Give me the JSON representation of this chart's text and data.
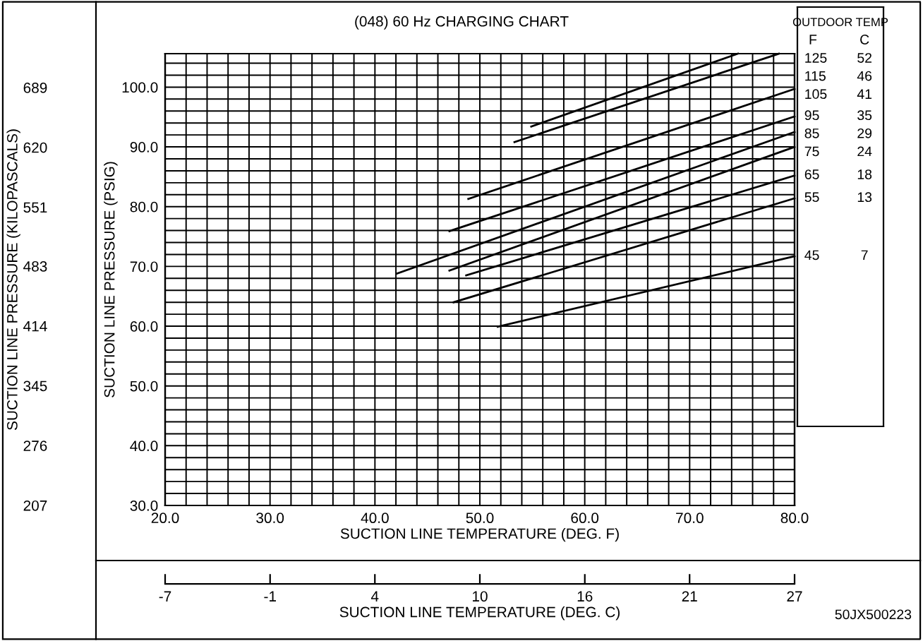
{
  "chart_data": {
    "type": "line",
    "title": "(048) 60 Hz CHARGING CHART",
    "xlabel": "SUCTION LINE TEMPERATURE (DEG. F)",
    "ylabel": "SUCTION LINE PRESSURE (PSIG)",
    "y2label": "SUCTION LINE PRESSURE (KILOPASCALS)",
    "x2label": "SUCTION LINE TEMPERATURE (DEG. C)",
    "legend_title": "OUTDOOR TEMP",
    "legend": "right",
    "grid": true,
    "marker": "none",
    "line_style": "solid",
    "xlim": [
      20,
      80
    ],
    "ylim": [
      30,
      105.6
    ],
    "y2lim": [
      206.9,
      728.1
    ],
    "x2lim": [
      -6.67,
      26.67
    ],
    "xticks": [
      {
        "value": 20,
        "label": "20.0"
      },
      {
        "value": 22,
        "label": null
      },
      {
        "value": 24,
        "label": null
      },
      {
        "value": 26,
        "label": null
      },
      {
        "value": 28,
        "label": null
      },
      {
        "value": 30,
        "label": "30.0"
      },
      {
        "value": 32,
        "label": null
      },
      {
        "value": 34,
        "label": null
      },
      {
        "value": 36,
        "label": null
      },
      {
        "value": 38,
        "label": null
      },
      {
        "value": 40,
        "label": "40.0"
      },
      {
        "value": 42,
        "label": null
      },
      {
        "value": 44,
        "label": null
      },
      {
        "value": 46,
        "label": null
      },
      {
        "value": 48,
        "label": null
      },
      {
        "value": 50,
        "label": "50.0"
      },
      {
        "value": 52,
        "label": null
      },
      {
        "value": 54,
        "label": null
      },
      {
        "value": 56,
        "label": null
      },
      {
        "value": 58,
        "label": null
      },
      {
        "value": 60,
        "label": "60.0"
      },
      {
        "value": 62,
        "label": null
      },
      {
        "value": 64,
        "label": null
      },
      {
        "value": 66,
        "label": null
      },
      {
        "value": 68,
        "label": null
      },
      {
        "value": 70,
        "label": "70.0"
      },
      {
        "value": 72,
        "label": null
      },
      {
        "value": 74,
        "label": null
      },
      {
        "value": 76,
        "label": null
      },
      {
        "value": 78,
        "label": null
      },
      {
        "value": 80,
        "label": "80.0"
      }
    ],
    "yticks": [
      {
        "value": 30,
        "label": "30.0"
      },
      {
        "value": 32,
        "label": null
      },
      {
        "value": 34,
        "label": null
      },
      {
        "value": 36,
        "label": null
      },
      {
        "value": 38,
        "label": null
      },
      {
        "value": 40,
        "label": "40.0"
      },
      {
        "value": 42,
        "label": null
      },
      {
        "value": 44,
        "label": null
      },
      {
        "value": 46,
        "label": null
      },
      {
        "value": 48,
        "label": null
      },
      {
        "value": 50,
        "label": "50.0"
      },
      {
        "value": 52,
        "label": null
      },
      {
        "value": 54,
        "label": null
      },
      {
        "value": 56,
        "label": null
      },
      {
        "value": 58,
        "label": null
      },
      {
        "value": 60,
        "label": "60.0"
      },
      {
        "value": 62,
        "label": null
      },
      {
        "value": 64,
        "label": null
      },
      {
        "value": 66,
        "label": null
      },
      {
        "value": 68,
        "label": null
      },
      {
        "value": 70,
        "label": "70.0"
      },
      {
        "value": 72,
        "label": null
      },
      {
        "value": 74,
        "label": null
      },
      {
        "value": 76,
        "label": null
      },
      {
        "value": 78,
        "label": null
      },
      {
        "value": 80,
        "label": "80.0"
      },
      {
        "value": 82,
        "label": null
      },
      {
        "value": 84,
        "label": null
      },
      {
        "value": 86,
        "label": null
      },
      {
        "value": 88,
        "label": null
      },
      {
        "value": 90,
        "label": "90.0"
      },
      {
        "value": 92,
        "label": null
      },
      {
        "value": 94,
        "label": null
      },
      {
        "value": 96,
        "label": null
      },
      {
        "value": 98,
        "label": null
      },
      {
        "value": 100,
        "label": "100.0"
      },
      {
        "value": 102,
        "label": null
      },
      {
        "value": 104,
        "label": null
      }
    ],
    "y2ticks": [
      207,
      276,
      345,
      414,
      483,
      551,
      620,
      689
    ],
    "x2ticks": [
      {
        "value": -6.67,
        "label": "-7"
      },
      {
        "value": -1.11,
        "label": "-1"
      },
      {
        "value": 4.44,
        "label": "4"
      },
      {
        "value": 10,
        "label": "10"
      },
      {
        "value": 15.56,
        "label": "16"
      },
      {
        "value": 21.11,
        "label": "21"
      },
      {
        "value": 26.67,
        "label": "27"
      }
    ],
    "series": [
      {
        "name": "125",
        "color": "#000000",
        "x": [
          54.9,
          74.6
        ],
        "values": [
          93.4,
          105.6
        ]
      },
      {
        "name": "115",
        "color": "#000000",
        "x": [
          53.3,
          78.5
        ],
        "values": [
          90.8,
          105.6
        ]
      },
      {
        "name": "105",
        "color": "#000000",
        "x": [
          48.9,
          80
        ],
        "values": [
          81.3,
          99.7
        ]
      },
      {
        "name": "95",
        "color": "#000000",
        "x": [
          47.1,
          80
        ],
        "values": [
          75.9,
          95.1
        ]
      },
      {
        "name": "85",
        "color": "#000000",
        "x": [
          42.1,
          80
        ],
        "values": [
          68.8,
          92.5
        ]
      },
      {
        "name": "75",
        "color": "#000000",
        "x": [
          47.1,
          80
        ],
        "values": [
          69.3,
          90.0
        ]
      },
      {
        "name": "65",
        "color": "#000000",
        "x": [
          48.7,
          80
        ],
        "values": [
          68.5,
          85.2
        ]
      },
      {
        "name": "55",
        "color": "#000000",
        "x": [
          47.5,
          80
        ],
        "values": [
          64.0,
          81.4
        ]
      },
      {
        "name": "45",
        "color": "#000000",
        "x": [
          51.7,
          80
        ],
        "values": [
          59.9,
          71.7
        ]
      }
    ],
    "annotations": [
      "F",
      "C",
      "52",
      "46",
      "41",
      "35",
      "29",
      "24",
      "18",
      "13",
      "7",
      "50JX500223"
    ]
  }
}
